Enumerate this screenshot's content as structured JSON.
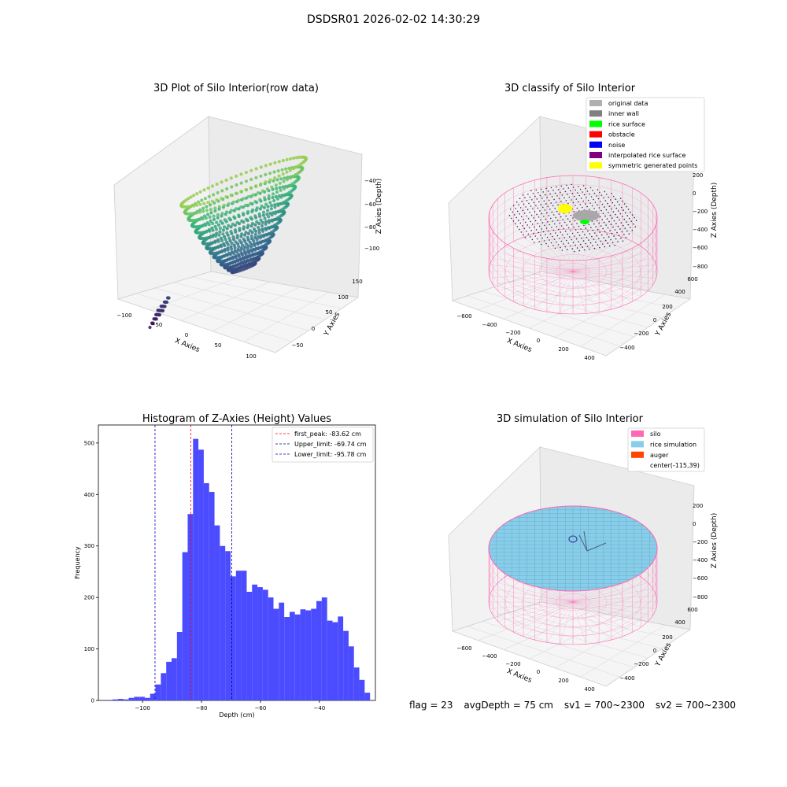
{
  "figure": {
    "suptitle": "DSDSR01 2026-02-02 14:30:29",
    "status": {
      "flag": "flag = 23",
      "avg_depth": "avgDepth = 75 cm",
      "sv1": "sv1 = 700~2300",
      "sv2": "sv2 = 700~2300"
    }
  },
  "chart_data": [
    {
      "id": "raw",
      "type": "scatter",
      "title": "3D Plot of Silo Interior(row data)",
      "xlabel": "X Axies",
      "ylabel": "Y Axies",
      "zlabel": "Z Axies (Depth)",
      "x_ticks": [
        "−100",
        "−50",
        "0",
        "50",
        "100"
      ],
      "y_ticks": [
        "−50",
        "0",
        "50",
        "100",
        "150"
      ],
      "z_ticks": [
        "−100",
        "−80",
        "−60",
        "−40"
      ],
      "xlim": [
        -110,
        120
      ],
      "ylim": [
        -70,
        170
      ],
      "zlim": [
        -115,
        -30
      ],
      "colormap": [
        "#440154",
        "#31688e",
        "#35b779",
        "#fde725"
      ],
      "surface": {
        "shape": "bowl",
        "center": [
          5,
          60
        ],
        "radius": 85,
        "rim_depth": -40,
        "bottom_depth": -100
      },
      "outlier_cluster": {
        "x": [
          -95,
          -75
        ],
        "y": [
          -10,
          10
        ],
        "z": [
          -110,
          -95
        ]
      }
    },
    {
      "id": "classify",
      "type": "scatter",
      "title": "3D classify of Silo Interior",
      "xlabel": "X Axies",
      "ylabel": "Y Axies",
      "zlabel": "Z Axies (Depth)",
      "x_ticks": [
        "−600",
        "−400",
        "−200",
        "0",
        "200",
        "400"
      ],
      "y_ticks": [
        "−400",
        "−200",
        "0",
        "200",
        "400",
        "600"
      ],
      "z_ticks": [
        "−800",
        "−600",
        "−400",
        "−200",
        "0",
        "200"
      ],
      "xlim": [
        -700,
        470
      ],
      "ylim": [
        -500,
        650
      ],
      "zlim": [
        -820,
        220
      ],
      "legend": {
        "placement": "top-right",
        "entries": [
          {
            "label": "original data",
            "color": "#b0b0b0"
          },
          {
            "label": "inner wall",
            "color": "#808080"
          },
          {
            "label": "rice surface",
            "color": "#00ff00"
          },
          {
            "label": "obstacle",
            "color": "#ff0000"
          },
          {
            "label": "noise",
            "color": "#0000ff"
          },
          {
            "label": "interpolated rice surface",
            "color": "#800080"
          },
          {
            "label": "symmetric generated points",
            "color": "#ffff00"
          }
        ]
      },
      "silo": {
        "center": [
          -115,
          39
        ],
        "radius": 520,
        "top": 0,
        "bottom": -800,
        "wire_color": "#ff69b4"
      }
    },
    {
      "id": "hist",
      "type": "bar",
      "title": "Histogram of Z-Axies (Height) Values",
      "xlabel": "Depth (cm)",
      "ylabel": "Frequency",
      "xlim": [
        -115,
        -21
      ],
      "ylim": [
        0,
        535
      ],
      "x_ticks": [
        -100,
        -80,
        -60,
        -40
      ],
      "x_tick_labels": [
        "−100",
        "−80",
        "−60",
        "−40"
      ],
      "y_ticks": [
        0,
        100,
        200,
        300,
        400,
        500
      ],
      "bin_start": -112,
      "bin_width": 1.82,
      "values": [
        1,
        2,
        3,
        2,
        5,
        7,
        7,
        5,
        13,
        31,
        53,
        75,
        82,
        133,
        288,
        362,
        508,
        487,
        422,
        405,
        340,
        300,
        290,
        241,
        252,
        252,
        211,
        225,
        220,
        215,
        200,
        178,
        190,
        162,
        172,
        167,
        177,
        175,
        178,
        193,
        200,
        155,
        152,
        163,
        135,
        105,
        64,
        40,
        15
      ],
      "bar_color": "#4b4bff",
      "vlines": [
        {
          "label": "first_peak: -83.62 cm",
          "x": -83.62,
          "color": "#ff0000",
          "dash": "3,2"
        },
        {
          "label": "Upper_limit: -69.74 cm",
          "x": -69.74,
          "color": "#00008b",
          "dash": "3,2"
        },
        {
          "label": "Lower_limit: -95.78 cm",
          "x": -95.78,
          "color": "#0000cd",
          "dash": "3,2"
        }
      ],
      "legend_placement": "top-right"
    },
    {
      "id": "sim",
      "type": "scatter",
      "title": "3D simulation of Silo Interior",
      "xlabel": "X Axies",
      "ylabel": "Y Axies",
      "zlabel": "Z Axies (Depth)",
      "x_ticks": [
        "−600",
        "−400",
        "−200",
        "0",
        "200",
        "400"
      ],
      "y_ticks": [
        "−400",
        "−200",
        "0",
        "200",
        "400",
        "600"
      ],
      "z_ticks": [
        "−800",
        "−600",
        "−400",
        "−200",
        "0",
        "200"
      ],
      "xlim": [
        -700,
        470
      ],
      "ylim": [
        -500,
        650
      ],
      "zlim": [
        -820,
        220
      ],
      "legend": {
        "placement": "top-right",
        "entries": [
          {
            "label": "silo",
            "color": "#ff69b4"
          },
          {
            "label": "rice simulation",
            "color": "#87ceeb"
          },
          {
            "label": "auger",
            "color": "#ff4500"
          },
          {
            "label": "center(-115,39)",
            "color": ""
          }
        ]
      },
      "silo": {
        "center": [
          -115,
          39
        ],
        "radius": 520,
        "top": 0,
        "bottom": -800,
        "wire_color": "#ff69b4"
      },
      "rice_surface_depth": 0
    }
  ]
}
